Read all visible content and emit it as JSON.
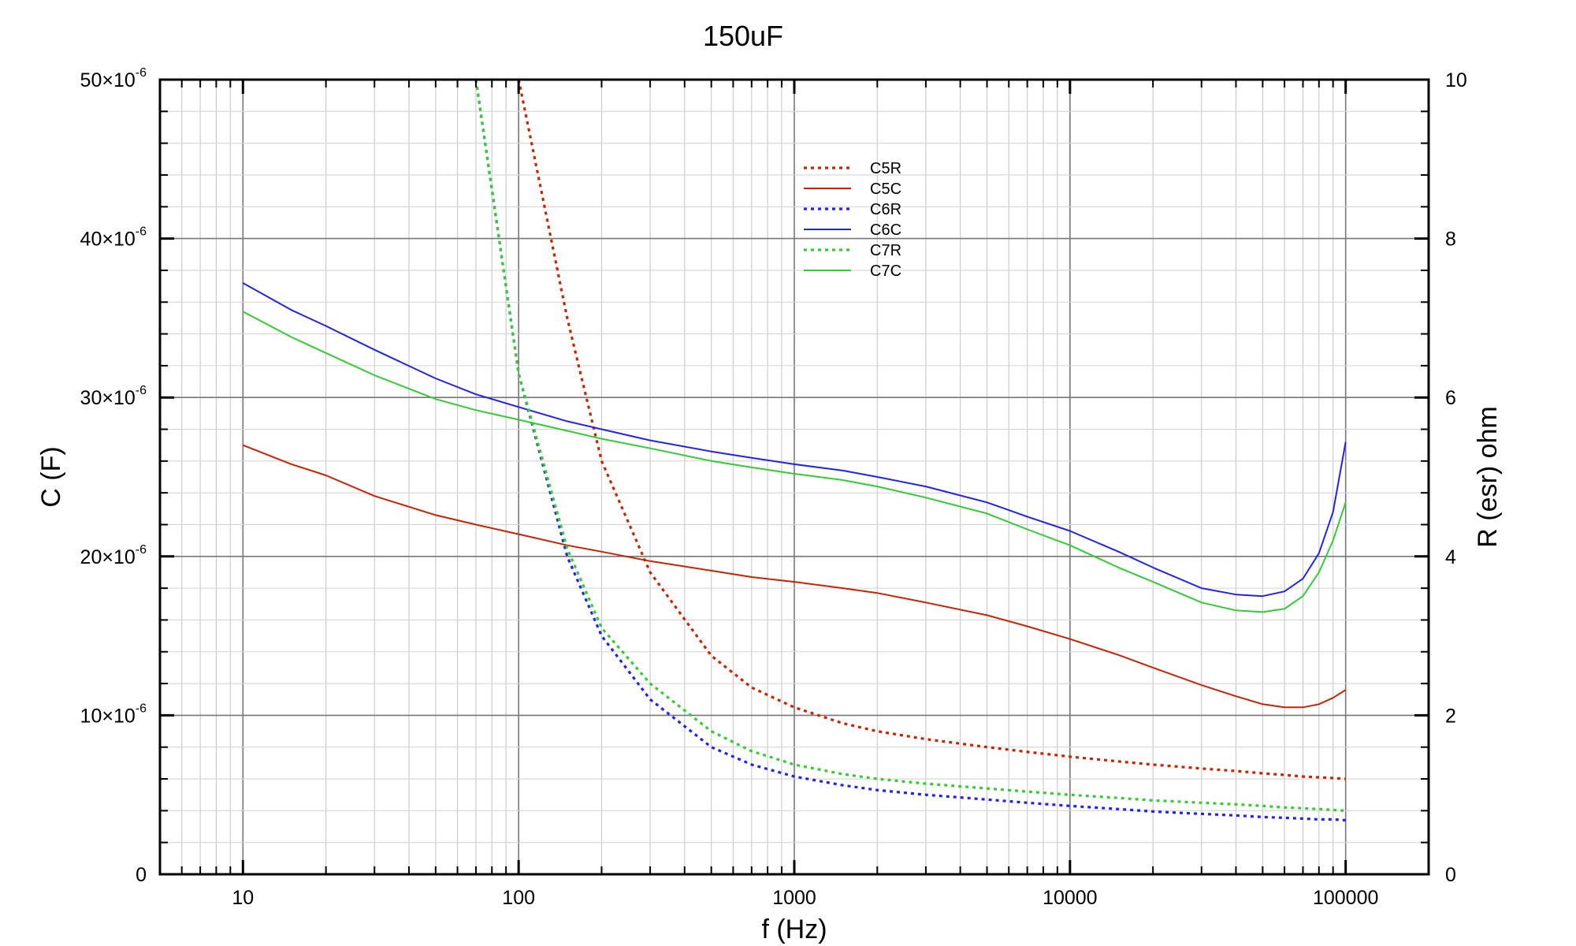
{
  "chart_data": {
    "type": "line",
    "title": "150uF",
    "xlabel": "f (Hz)",
    "ylabel_left": "C (F)",
    "ylabel_right": "R (esr) ohm",
    "x_scale": "log",
    "xlim": [
      5,
      200000
    ],
    "ylim_left": [
      0,
      5e-05
    ],
    "ylim_right": [
      0,
      10
    ],
    "x_ticks": [
      {
        "value": 10,
        "label": "10"
      },
      {
        "value": 100,
        "label": "100"
      },
      {
        "value": 1000,
        "label": "1000"
      },
      {
        "value": 10000,
        "label": "10000"
      },
      {
        "value": 100000,
        "label": "100000"
      }
    ],
    "y_left_ticks": [
      {
        "value": 0,
        "label": "0"
      },
      {
        "value": 1e-05,
        "label": "10×10"
      },
      {
        "value": 2e-05,
        "label": "20×10"
      },
      {
        "value": 3e-05,
        "label": "30×10"
      },
      {
        "value": 4e-05,
        "label": "40×10"
      },
      {
        "value": 5e-05,
        "label": "50×10"
      }
    ],
    "y_left_tick_exponent": "-6",
    "y_right_ticks": [
      {
        "value": 0,
        "label": "0"
      },
      {
        "value": 2,
        "label": "2"
      },
      {
        "value": 4,
        "label": "4"
      },
      {
        "value": 6,
        "label": "6"
      },
      {
        "value": 8,
        "label": "8"
      },
      {
        "value": 10,
        "label": "10"
      }
    ],
    "grid": true,
    "legend_position": "top-center",
    "x": [
      10,
      15,
      20,
      30,
      50,
      70,
      100,
      150,
      200,
      300,
      500,
      700,
      1000,
      1500,
      2000,
      3000,
      5000,
      7000,
      10000,
      15000,
      20000,
      30000,
      40000,
      50000,
      60000,
      70000,
      80000,
      90000,
      100000
    ],
    "series": [
      {
        "name": "C5R",
        "axis": "right",
        "color": "#cc2200",
        "dash": "dotted",
        "values": [
          null,
          null,
          null,
          null,
          null,
          null,
          10.0,
          7.0,
          5.2,
          3.8,
          2.75,
          2.35,
          2.1,
          1.9,
          1.8,
          1.7,
          1.6,
          1.54,
          1.48,
          1.42,
          1.38,
          1.33,
          1.3,
          1.27,
          1.25,
          1.23,
          1.22,
          1.21,
          1.2
        ]
      },
      {
        "name": "C5C",
        "axis": "left",
        "color": "#cc2200",
        "dash": "solid",
        "values": [
          2.7e-05,
          2.58e-05,
          2.51e-05,
          2.38e-05,
          2.26e-05,
          2.2e-05,
          2.14e-05,
          2.07e-05,
          2.03e-05,
          1.97e-05,
          1.91e-05,
          1.87e-05,
          1.84e-05,
          1.8e-05,
          1.77e-05,
          1.71e-05,
          1.63e-05,
          1.56e-05,
          1.48e-05,
          1.38e-05,
          1.3e-05,
          1.19e-05,
          1.12e-05,
          1.07e-05,
          1.05e-05,
          1.05e-05,
          1.07e-05,
          1.11e-05,
          1.16e-05
        ]
      },
      {
        "name": "C6R",
        "axis": "right",
        "color": "#2222ee",
        "dash": "dotted",
        "values": [
          null,
          null,
          null,
          null,
          null,
          10.0,
          6.3,
          4.0,
          3.0,
          2.2,
          1.6,
          1.38,
          1.23,
          1.12,
          1.06,
          1.0,
          0.94,
          0.9,
          0.86,
          0.82,
          0.79,
          0.76,
          0.74,
          0.72,
          0.71,
          0.7,
          0.69,
          0.69,
          0.68
        ]
      },
      {
        "name": "C6C",
        "axis": "left",
        "color": "#2222ee",
        "dash": "solid",
        "values": [
          3.72e-05,
          3.55e-05,
          3.45e-05,
          3.3e-05,
          3.12e-05,
          3.02e-05,
          2.94e-05,
          2.85e-05,
          2.8e-05,
          2.73e-05,
          2.66e-05,
          2.62e-05,
          2.58e-05,
          2.54e-05,
          2.5e-05,
          2.44e-05,
          2.34e-05,
          2.25e-05,
          2.16e-05,
          2.03e-05,
          1.93e-05,
          1.8e-05,
          1.76e-05,
          1.75e-05,
          1.78e-05,
          1.86e-05,
          2.02e-05,
          2.28e-05,
          2.72e-05
        ]
      },
      {
        "name": "C7R",
        "axis": "right",
        "color": "#33cc33",
        "dash": "dotted",
        "values": [
          null,
          null,
          null,
          null,
          null,
          10.0,
          6.3,
          4.1,
          3.1,
          2.4,
          1.8,
          1.55,
          1.38,
          1.26,
          1.2,
          1.14,
          1.08,
          1.04,
          1.0,
          0.96,
          0.93,
          0.9,
          0.88,
          0.86,
          0.84,
          0.83,
          0.82,
          0.81,
          0.8
        ]
      },
      {
        "name": "C7C",
        "axis": "left",
        "color": "#33cc33",
        "dash": "solid",
        "values": [
          3.54e-05,
          3.38e-05,
          3.28e-05,
          3.14e-05,
          2.99e-05,
          2.92e-05,
          2.86e-05,
          2.79e-05,
          2.74e-05,
          2.68e-05,
          2.6e-05,
          2.56e-05,
          2.52e-05,
          2.48e-05,
          2.44e-05,
          2.37e-05,
          2.27e-05,
          2.17e-05,
          2.07e-05,
          1.93e-05,
          1.84e-05,
          1.71e-05,
          1.66e-05,
          1.65e-05,
          1.67e-05,
          1.75e-05,
          1.9e-05,
          2.1e-05,
          2.34e-05
        ]
      }
    ]
  }
}
